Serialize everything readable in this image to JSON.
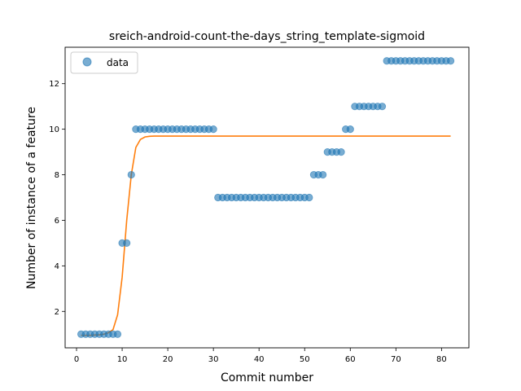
{
  "chart_data": {
    "type": "scatter",
    "title": "sreich-android-count-the-days_string_template-sigmoid",
    "xlabel": "Commit number",
    "ylabel": "Number of instance of a feature",
    "xlim": [
      -2.5,
      86
    ],
    "ylim": [
      0.4,
      13.6
    ],
    "xticks": [
      0,
      10,
      20,
      30,
      40,
      50,
      60,
      70,
      80
    ],
    "yticks": [
      2,
      4,
      6,
      8,
      10,
      12
    ],
    "grid": false,
    "legend": {
      "position": "top-left",
      "entries": [
        "data"
      ]
    },
    "series": [
      {
        "name": "data",
        "kind": "scatter",
        "color": "#1f77b4",
        "x": [
          1,
          2,
          3,
          4,
          5,
          6,
          7,
          8,
          9,
          10,
          11,
          12,
          13,
          14,
          15,
          16,
          17,
          18,
          19,
          20,
          21,
          22,
          23,
          24,
          25,
          26,
          27,
          28,
          29,
          30,
          31,
          32,
          33,
          34,
          35,
          36,
          37,
          38,
          39,
          40,
          41,
          42,
          43,
          44,
          45,
          46,
          47,
          48,
          49,
          50,
          51,
          52,
          53,
          54,
          55,
          56,
          57,
          58,
          59,
          60,
          61,
          62,
          63,
          64,
          65,
          66,
          67,
          68,
          69,
          70,
          71,
          72,
          73,
          74,
          75,
          76,
          77,
          78,
          79,
          80,
          81,
          82
        ],
        "y": [
          1,
          1,
          1,
          1,
          1,
          1,
          1,
          1,
          1,
          5,
          5,
          8,
          10,
          10,
          10,
          10,
          10,
          10,
          10,
          10,
          10,
          10,
          10,
          10,
          10,
          10,
          10,
          10,
          10,
          10,
          7,
          7,
          7,
          7,
          7,
          7,
          7,
          7,
          7,
          7,
          7,
          7,
          7,
          7,
          7,
          7,
          7,
          7,
          7,
          7,
          7,
          8,
          8,
          8,
          9,
          9,
          9,
          9,
          10,
          10,
          11,
          11,
          11,
          11,
          11,
          11,
          11,
          13,
          13,
          13,
          13,
          13,
          13,
          13,
          13,
          13,
          13,
          13,
          13,
          13,
          13,
          13
        ]
      },
      {
        "kind": "line",
        "color": "#ff7f0e",
        "x": [
          1,
          2,
          3,
          4,
          5,
          6,
          7,
          8,
          9,
          10,
          11,
          12,
          13,
          14,
          15,
          16,
          17,
          18,
          19,
          20,
          22,
          25,
          30,
          40,
          50,
          60,
          70,
          80,
          82
        ],
        "y": [
          0.95,
          0.95,
          0.95,
          0.96,
          0.97,
          1.0,
          1.06,
          1.2,
          1.85,
          3.5,
          6.0,
          8.0,
          9.2,
          9.55,
          9.66,
          9.69,
          9.7,
          9.7,
          9.7,
          9.7,
          9.7,
          9.7,
          9.7,
          9.7,
          9.7,
          9.7,
          9.7,
          9.7,
          9.7
        ]
      }
    ]
  }
}
